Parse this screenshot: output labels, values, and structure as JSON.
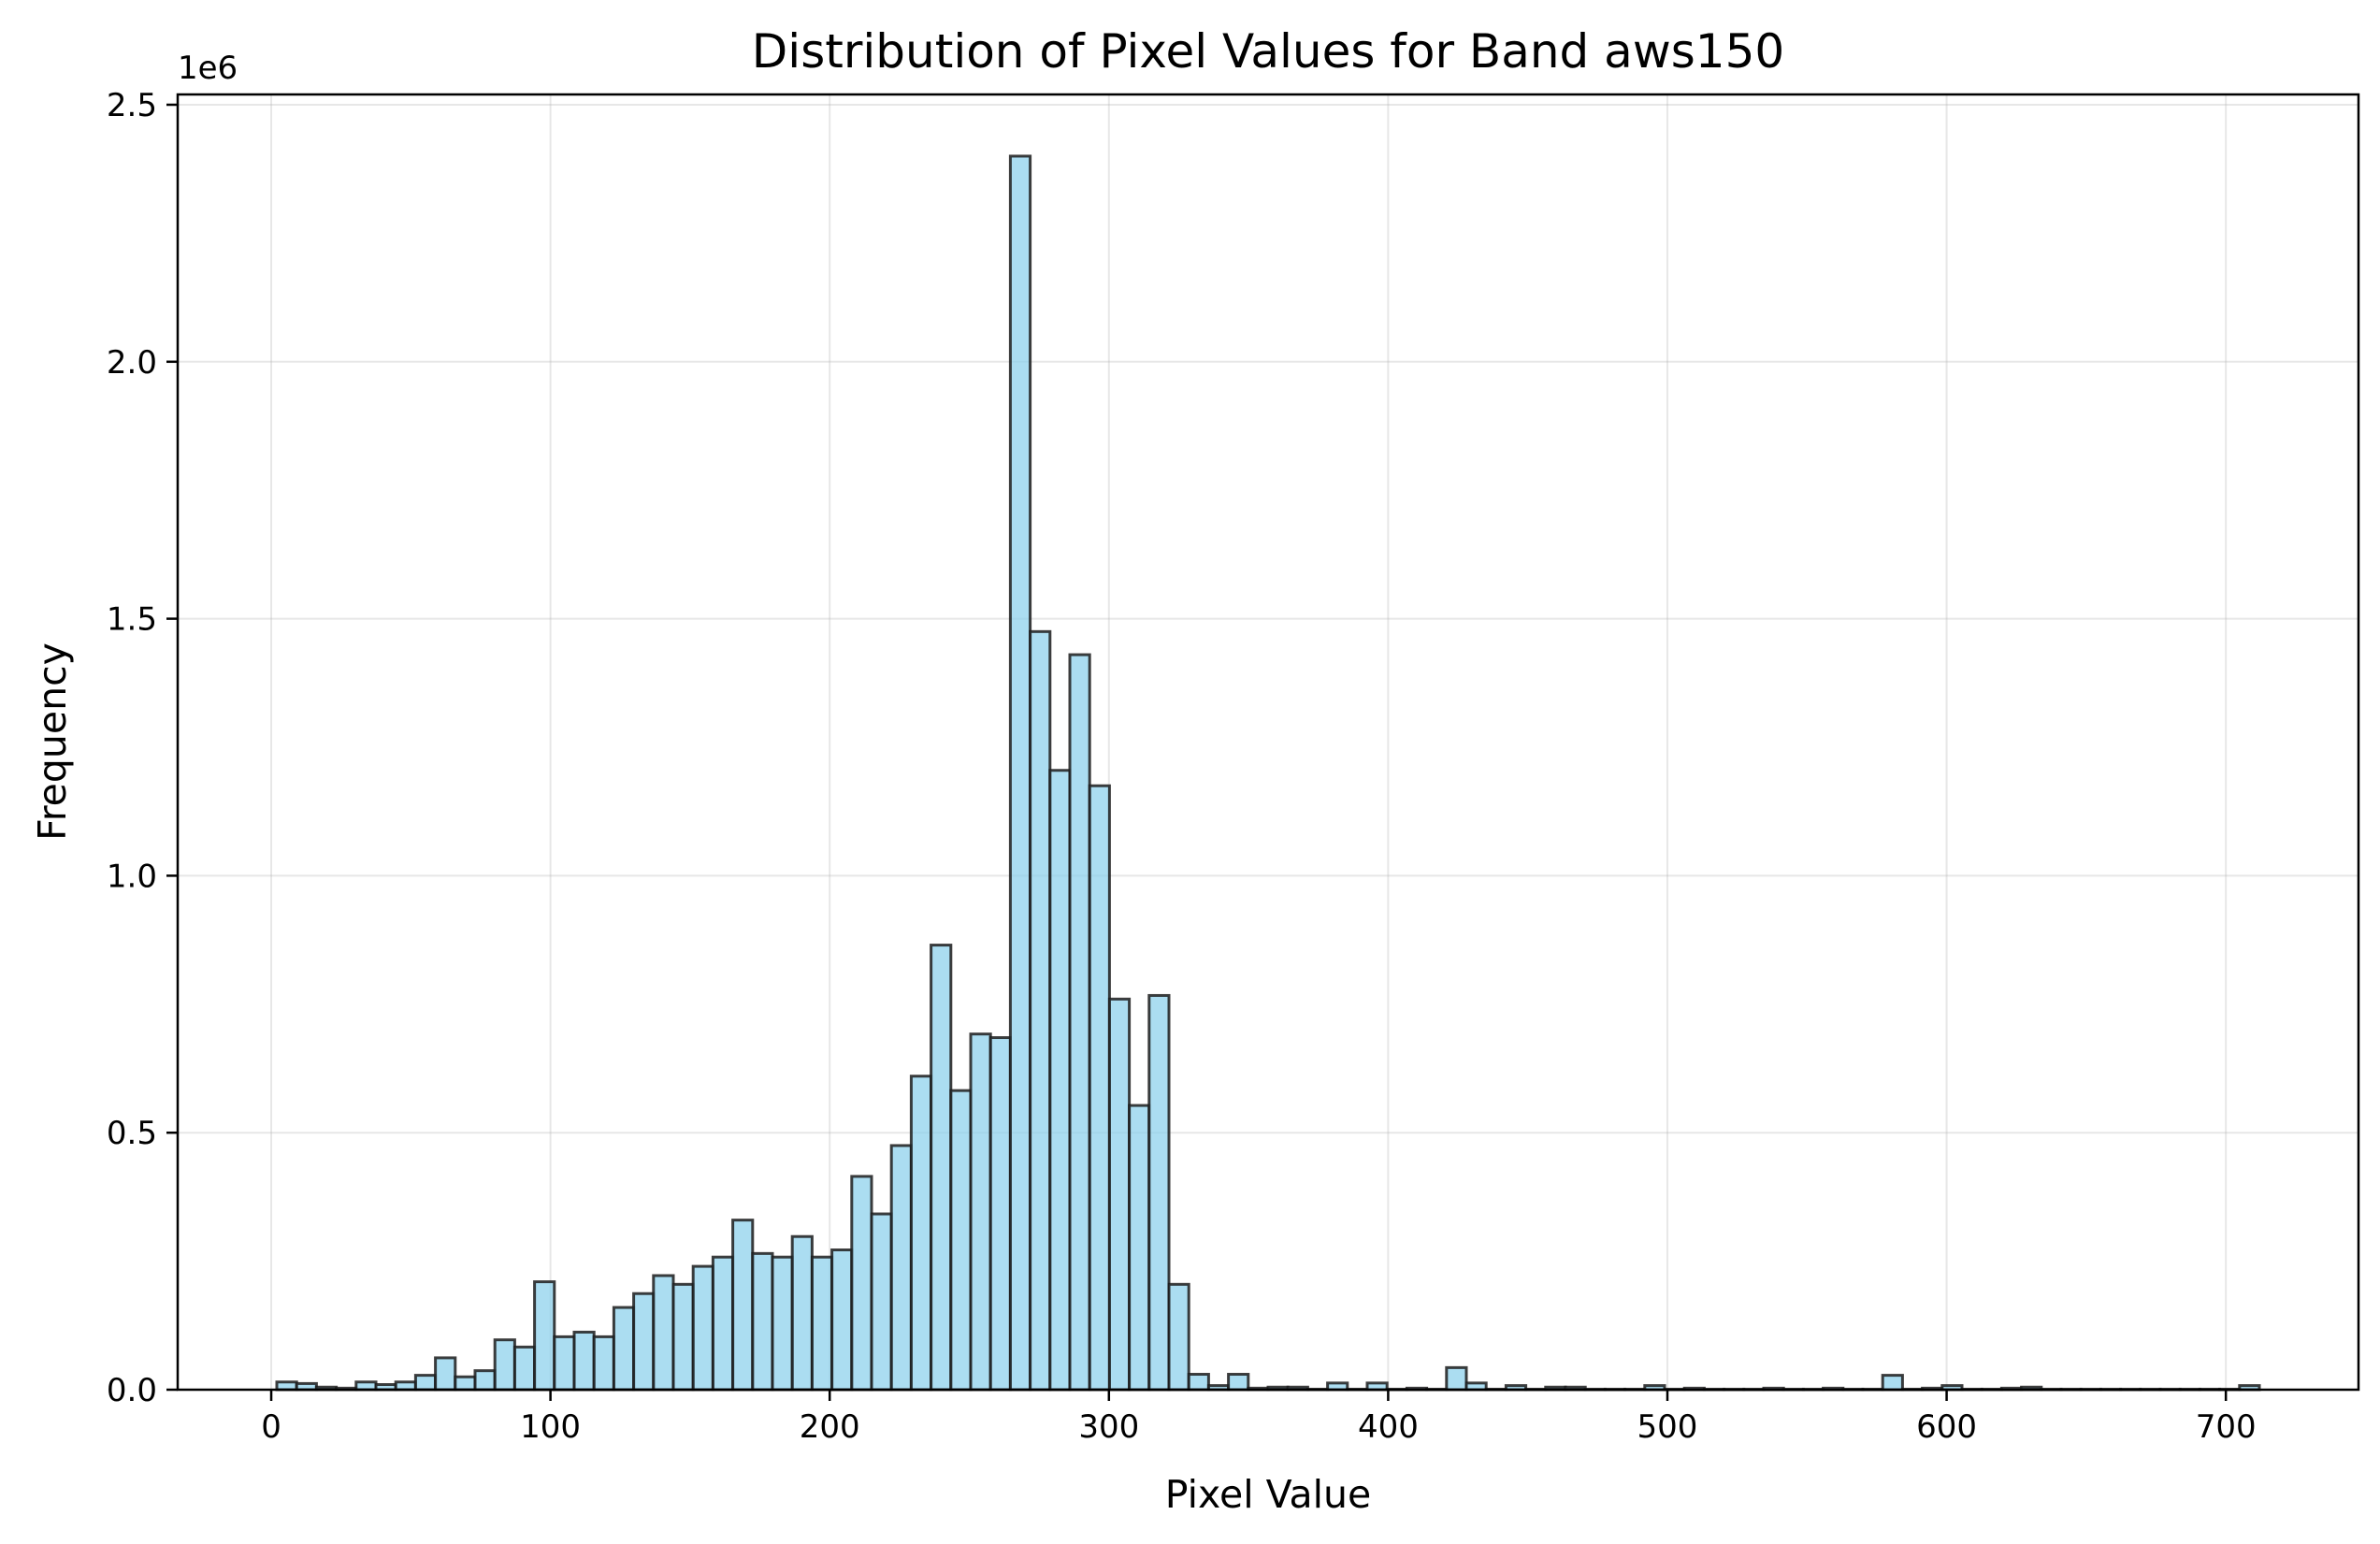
{
  "chart_data": {
    "type": "bar",
    "title": "Distribution of Pixel Values for Band aws150",
    "xlabel": "Pixel Value",
    "ylabel": "Frequency",
    "y_offset_label": "1e6",
    "xlim": [
      -33.5,
      747.5
    ],
    "ylim": [
      0,
      2520000
    ],
    "x_ticks": [
      0,
      100,
      200,
      300,
      400,
      500,
      600,
      700
    ],
    "x_tick_labels": [
      "0",
      "100",
      "200",
      "300",
      "400",
      "500",
      "600",
      "700"
    ],
    "y_ticks": [
      0,
      500000,
      1000000,
      1500000,
      2000000,
      2500000
    ],
    "y_tick_labels": [
      "0.0",
      "0.5",
      "1.0",
      "1.5",
      "2.0",
      "2.5"
    ],
    "grid": true,
    "bar_color": "#87ceeb",
    "edge_color": "#1c1c1c",
    "bin_edges": [
      2,
      9.1,
      16.2,
      23.3,
      30.4,
      37.5,
      44.6,
      51.7,
      58.8,
      65.9,
      73,
      80.1,
      87.2,
      94.3,
      101.4,
      108.5,
      115.6,
      122.7,
      129.8,
      136.9,
      144,
      151.1,
      158.2,
      165.3,
      172.4,
      179.5,
      186.6,
      193.7,
      200.8,
      207.9,
      215,
      222.1,
      229.2,
      236.3,
      243.4,
      250.5,
      257.6,
      264.7,
      271.8,
      278.9,
      286,
      293.1,
      300.2,
      307.3,
      314.4,
      321.5,
      328.6,
      335.7,
      342.8,
      349.9,
      357,
      364.1,
      371.2,
      378.3,
      385.4,
      392.5,
      399.6,
      406.7,
      413.8,
      420.9,
      428,
      435.1,
      442.2,
      449.3,
      456.4,
      463.5,
      470.6,
      477.7,
      484.8,
      491.9,
      499,
      506.1,
      513.2,
      520.3,
      527.4,
      534.5,
      541.6,
      548.7,
      555.8,
      562.9,
      570,
      577.1,
      584.2,
      591.3,
      598.4,
      605.5,
      612.6,
      619.7,
      626.8,
      633.9,
      641,
      648.1,
      655.2,
      662.3,
      669.4,
      676.5,
      683.6,
      690.7,
      697.8,
      704.9,
      712
    ],
    "values": [
      15000,
      12000,
      5000,
      3000,
      15000,
      10000,
      15000,
      28000,
      62000,
      25000,
      37000,
      97000,
      83000,
      210000,
      103000,
      112000,
      103000,
      160000,
      187000,
      222000,
      205000,
      240000,
      258000,
      330000,
      265000,
      258000,
      298000,
      258000,
      272000,
      415000,
      342000,
      475000,
      610000,
      865000,
      582000,
      692000,
      685000,
      2400000,
      1475000,
      1205000,
      1430000,
      1175000,
      760000,
      553000,
      767000,
      205000,
      30000,
      8000,
      30000,
      3000,
      5000,
      5000,
      1000,
      13000,
      1000,
      13000,
      1000,
      3000,
      1000,
      43000,
      13000,
      1000,
      8000,
      1000,
      5000,
      5000,
      1000,
      1000,
      1000,
      8000,
      1000,
      3000,
      1000,
      1000,
      1000,
      3000,
      1000,
      1000,
      3000,
      1000,
      1000,
      28000,
      1000,
      3000,
      8000,
      1000,
      1000,
      3000,
      5000,
      1000,
      1000,
      1000,
      1000,
      1000,
      1000,
      1000,
      1000,
      1000,
      1000,
      8000
    ]
  }
}
